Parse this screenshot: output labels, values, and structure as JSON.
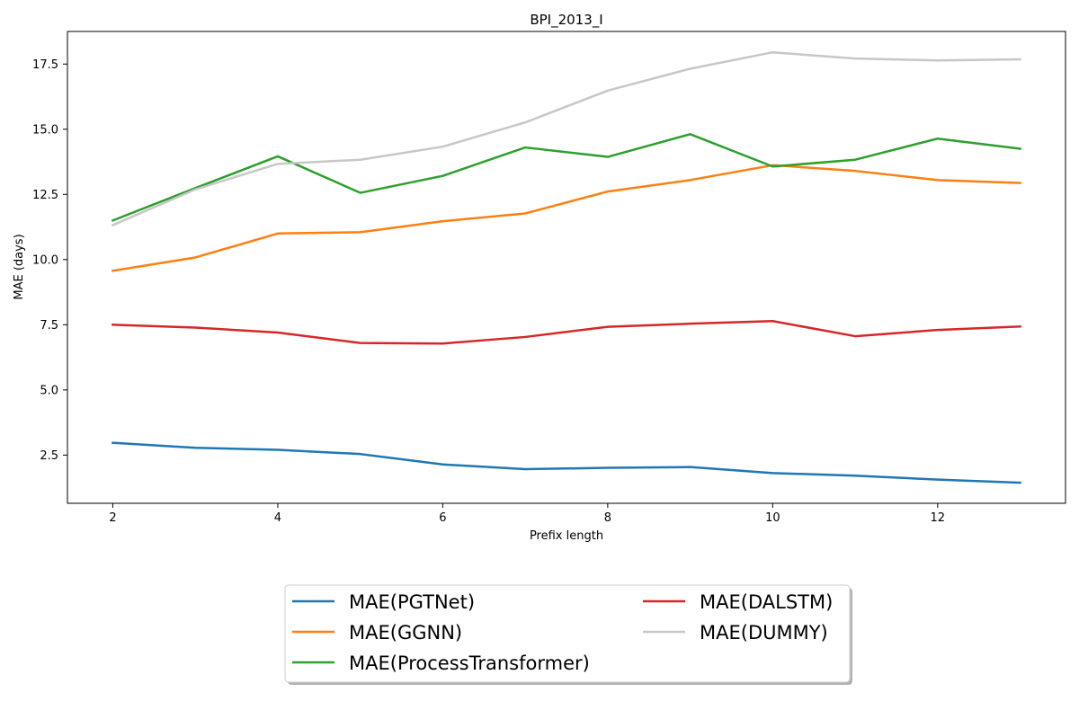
{
  "chart_data": {
    "type": "line",
    "title": "BPI_2013_I",
    "xlabel": "Prefix length",
    "ylabel": "MAE (days)",
    "x": [
      2,
      3,
      4,
      5,
      6,
      7,
      8,
      9,
      10,
      11,
      12,
      13
    ],
    "xlim": [
      1.45,
      13.55
    ],
    "ylim": [
      0.65,
      18.75
    ],
    "xticks": [
      2,
      4,
      6,
      8,
      10,
      12
    ],
    "yticks": [
      2.5,
      5.0,
      7.5,
      10.0,
      12.5,
      15.0,
      17.5
    ],
    "ytick_labels": [
      "2.5",
      "5.0",
      "7.5",
      "10.0",
      "12.5",
      "15.0",
      "17.5"
    ],
    "grid": false,
    "legend_position": "bottom-center, outside plot",
    "series": [
      {
        "name": "MAE(PGTNet)",
        "color": "#1f77b4",
        "values": [
          2.97,
          2.78,
          2.7,
          2.54,
          2.14,
          1.96,
          2.01,
          2.04,
          1.81,
          1.71,
          1.56,
          1.44
        ]
      },
      {
        "name": "MAE(GGNN)",
        "color": "#ff7f0e",
        "values": [
          9.57,
          10.08,
          11.0,
          11.05,
          11.47,
          11.77,
          12.61,
          13.05,
          13.62,
          13.4,
          13.05,
          12.94
        ]
      },
      {
        "name": "MAE(ProcessTransformer)",
        "color": "#2ca02c",
        "values": [
          11.5,
          12.74,
          13.96,
          12.56,
          13.21,
          14.3,
          13.94,
          14.81,
          13.57,
          13.83,
          14.64,
          14.25
        ]
      },
      {
        "name": "MAE(DALSTM)",
        "color": "#d62728",
        "values": [
          7.5,
          7.39,
          7.2,
          6.8,
          6.78,
          7.03,
          7.42,
          7.54,
          7.64,
          7.06,
          7.3,
          7.43
        ]
      },
      {
        "name": "MAE(DUMMY)",
        "color": "#c7c7c7",
        "values": [
          11.32,
          12.69,
          13.67,
          13.83,
          14.33,
          15.26,
          16.48,
          17.32,
          17.95,
          17.71,
          17.64,
          17.68
        ]
      }
    ],
    "legend_order": [
      0,
      1,
      2,
      3,
      4
    ]
  }
}
